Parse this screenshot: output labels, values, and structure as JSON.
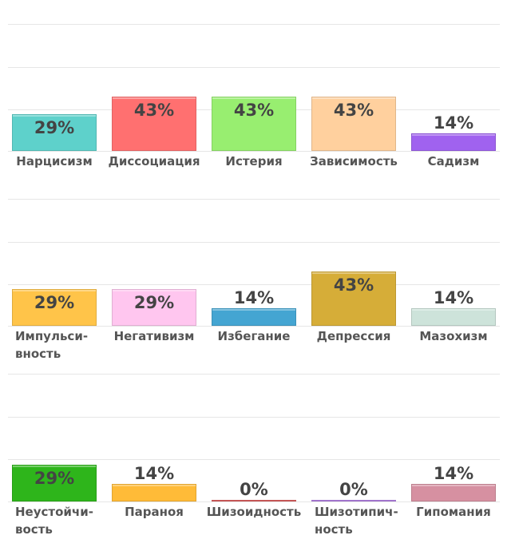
{
  "chart_data": [
    {
      "type": "bar",
      "categories": [
        "Нарцисизм",
        "Диссоциация",
        "Истерия",
        "Зависимость",
        "Садизм"
      ],
      "values": [
        29,
        43,
        43,
        43,
        14
      ],
      "value_labels": [
        "29%",
        "43%",
        "43%",
        "43%",
        "14%"
      ],
      "colors": [
        "#5ed1cb",
        "#ff7070",
        "#98ee70",
        "#ffd09e",
        "#a062ef"
      ],
      "ylim": [
        0,
        100
      ],
      "grid": true
    },
    {
      "type": "bar",
      "categories": [
        "Импульси-\nвность",
        "Негативизм",
        "Избегание",
        "Депрессия",
        "Мазохизм"
      ],
      "values": [
        29,
        29,
        14,
        43,
        14
      ],
      "value_labels": [
        "29%",
        "29%",
        "14%",
        "43%",
        "14%"
      ],
      "colors": [
        "#ffc449",
        "#ffc6ef",
        "#44a5d2",
        "#d6ad38",
        "#cde3da"
      ],
      "ylim": [
        0,
        100
      ],
      "grid": true
    },
    {
      "type": "bar",
      "categories": [
        "Неустойчи-\nвость",
        "Параноя",
        "Шизоидность",
        "Шизотипич-\nность",
        "Гипомания"
      ],
      "values": [
        29,
        14,
        0,
        0,
        14
      ],
      "value_labels": [
        "29%",
        "14%",
        "0%",
        "0%",
        "14%"
      ],
      "colors": [
        "#2eb51b",
        "#ffbb38",
        "#e06262",
        "#b784e8",
        "#d690a1"
      ],
      "ylim": [
        0,
        100
      ],
      "grid": true
    }
  ]
}
